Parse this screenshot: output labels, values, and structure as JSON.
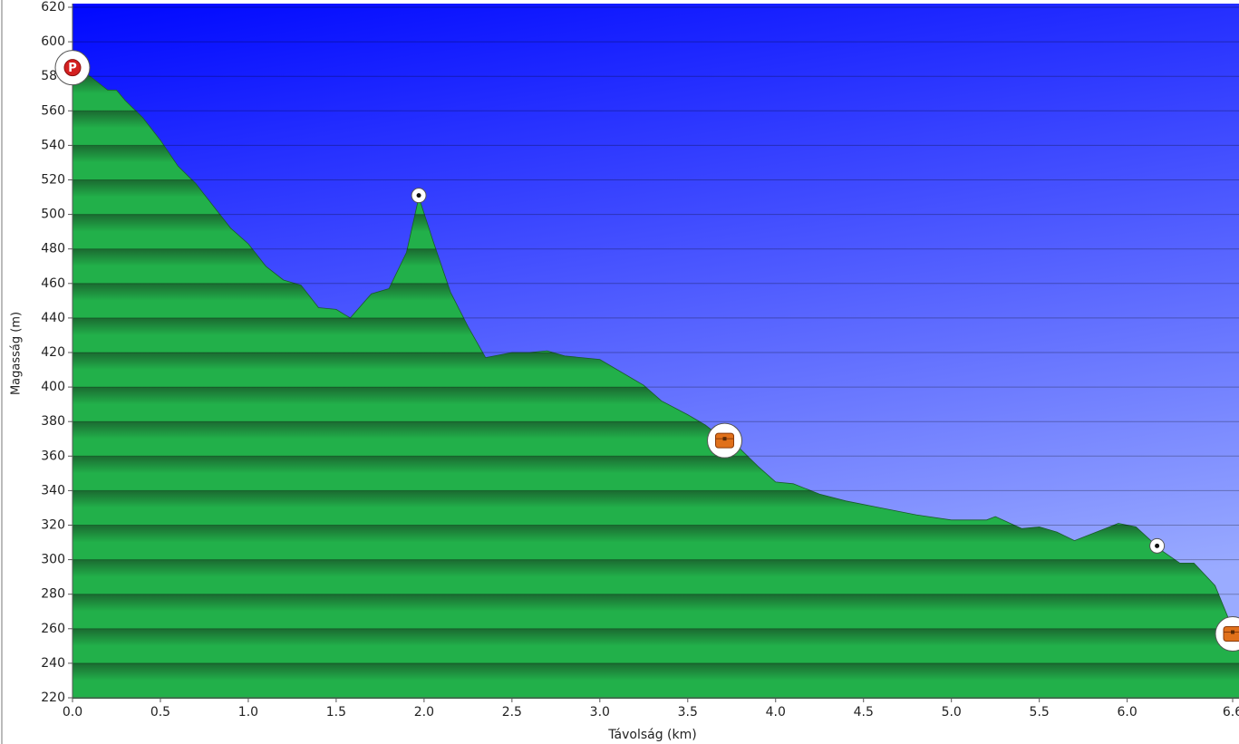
{
  "chart_data": {
    "type": "area",
    "x_label": "Távolság  (km)",
    "y_label": "Magasság (m)",
    "x": [
      0.0,
      0.1,
      0.2,
      0.25,
      0.3,
      0.4,
      0.5,
      0.6,
      0.7,
      0.8,
      0.9,
      1.0,
      1.1,
      1.2,
      1.3,
      1.4,
      1.5,
      1.58,
      1.7,
      1.8,
      1.9,
      1.97,
      2.05,
      2.15,
      2.25,
      2.35,
      2.5,
      2.6,
      2.7,
      2.8,
      3.0,
      3.1,
      3.25,
      3.35,
      3.5,
      3.6,
      3.7,
      3.8,
      3.9,
      4.0,
      4.1,
      4.25,
      4.4,
      4.6,
      4.8,
      5.0,
      5.2,
      5.25,
      5.4,
      5.5,
      5.6,
      5.7,
      5.8,
      5.95,
      6.05,
      6.2,
      6.3,
      6.38,
      6.5,
      6.6
    ],
    "values": [
      585,
      580,
      572,
      572,
      566,
      556,
      543,
      528,
      518,
      505,
      492,
      483,
      470,
      462,
      459,
      446,
      445,
      440,
      454,
      457,
      478,
      510,
      485,
      455,
      435,
      417,
      420,
      420,
      421,
      418,
      416,
      410,
      401,
      392,
      384,
      378,
      370,
      364,
      354,
      345,
      344,
      338,
      334,
      330,
      326,
      323,
      323,
      325,
      318,
      319,
      316,
      311,
      315,
      321,
      319,
      305,
      298,
      298,
      285,
      260
    ],
    "color": "#22b04a",
    "points": [
      {
        "x": 0.0,
        "y": 585,
        "label": "P"
      },
      {
        "x": 1.97,
        "y": 511,
        "symbol": "dot"
      },
      {
        "x": 3.71,
        "y": 369,
        "symbol": "chest"
      },
      {
        "x": 6.17,
        "y": 308,
        "symbol": "dot"
      },
      {
        "x": 6.6,
        "y": 257,
        "symbol": "chest"
      }
    ],
    "xlim": [
      0,
      6.6
    ],
    "ylim": [
      220,
      620
    ],
    "xticks": [
      {
        "value": 0,
        "label": "0.0"
      },
      0.5,
      {
        "value": 1,
        "label": "1.0"
      },
      1.5,
      {
        "value": 2,
        "label": "2.0"
      },
      2.5,
      {
        "value": 3,
        "label": "3.0"
      },
      3.5,
      {
        "value": 4,
        "label": "4.0"
      },
      4.5,
      {
        "value": 5,
        "label": "5.0"
      },
      5.5,
      {
        "value": 6,
        "label": "6.0"
      },
      6.6
    ],
    "yticks": [
      220,
      240,
      260,
      280,
      300,
      320,
      340,
      360,
      380,
      400,
      420,
      440,
      460,
      480,
      500,
      520,
      540,
      560,
      580,
      600,
      620
    ],
    "grid": true
  }
}
